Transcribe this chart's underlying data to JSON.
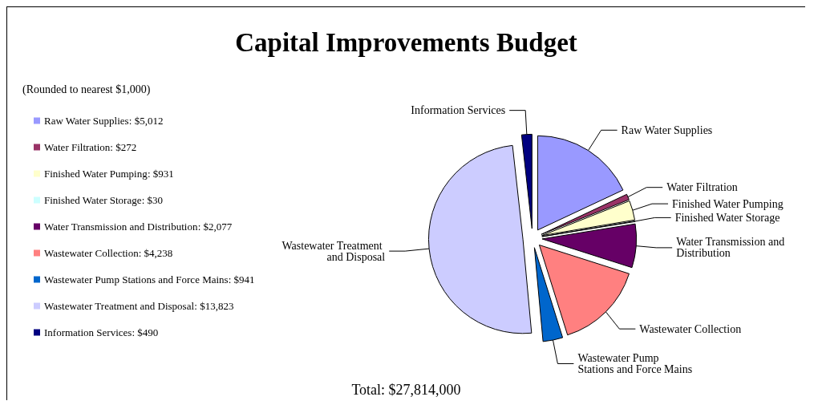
{
  "chart_data": {
    "type": "pie",
    "title": "Capital Improvements Budget",
    "subtitle": "(Rounded to nearest $1,000)",
    "categories": [
      "Raw Water Supplies",
      "Water Filtration",
      "Finished Water Pumping",
      "Finished Water Storage",
      "Water Transmission and Distribution",
      "Wastewater Collection",
      "Wastewater Pump Stations and Force Mains",
      "Wastewater Treatment and Disposal",
      "Information Services"
    ],
    "values": [
      5012,
      272,
      931,
      30,
      2077,
      4238,
      941,
      13823,
      490
    ],
    "value_labels": [
      ": $5,012",
      ": $272",
      ": $931",
      ": $30",
      ": $2,077",
      ": $4,238",
      ": $941",
      ": $13,823",
      ": $490"
    ],
    "colors": [
      "#9999ff",
      "#993366",
      "#ffffcc",
      "#ccffff",
      "#660066",
      "#ff8080",
      "#0066cc",
      "#ccccff",
      "#000080"
    ],
    "legend": "left",
    "annotations": [
      "Total: $27,814,000"
    ]
  }
}
